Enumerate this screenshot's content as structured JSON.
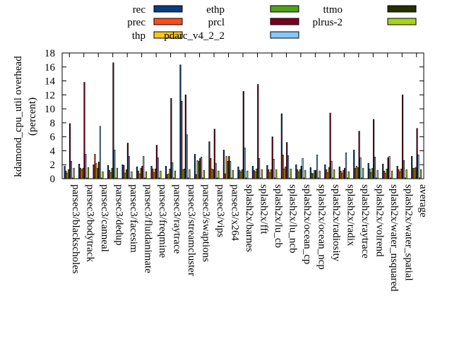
{
  "chart_data": {
    "type": "bar",
    "ylabel": "kdamond_cpu_util overhead\n(percent)",
    "ylim": [
      0,
      18
    ],
    "yticks": [
      0,
      2,
      4,
      6,
      8,
      10,
      12,
      14,
      16,
      18
    ],
    "legend_position": "top",
    "categories": [
      "parsec3/blackscholes",
      "parsec3/bodytrack",
      "parsec3/canneal",
      "parsec3/dedup",
      "parsec3/facesim",
      "parsec3/fluidanimate",
      "parsec3/freqmine",
      "parsec3/raytrace",
      "parsec3/streamcluster",
      "parsec3/swaptions",
      "parsec3/vips",
      "parsec3/x264",
      "splash2x/barnes",
      "splash2x/fft",
      "splash2x/lu_cb",
      "splash2x/lu_ncb",
      "splash2x/ocean_cp",
      "splash2x/ocean_ncp",
      "splash2x/radiosity",
      "splash2x/radix",
      "splash2x/raytrace",
      "splash2x/volrend",
      "splash2x/water_nsquared",
      "splash2x/water_spatial",
      "average"
    ],
    "series": [
      {
        "name": "rec",
        "color": "#0a3e80",
        "values": [
          1.8,
          2.1,
          2.0,
          1.9,
          2.0,
          1.7,
          1.8,
          1.8,
          16.3,
          3.5,
          5.3,
          4.1,
          1.7,
          1.8,
          1.9,
          9.3,
          2.0,
          1.6,
          2.0,
          1.7,
          4.1,
          2.2,
          2.1,
          1.8,
          3.2
        ]
      },
      {
        "name": "prec",
        "color": "#ff4a1a",
        "values": [
          1.1,
          1.5,
          3.5,
          1.2,
          1.9,
          1.1,
          1.4,
          0.6,
          11.1,
          0.6,
          2.9,
          0.7,
          1.2,
          1.2,
          1.3,
          3.4,
          1.3,
          0.8,
          1.3,
          1.1,
          1.5,
          1.4,
          1.1,
          1.3,
          1.5
        ]
      },
      {
        "name": "thp",
        "color": "#f7c81a",
        "values": [
          0.8,
          1.3,
          2.2,
          0.9,
          0.8,
          0.7,
          0.9,
          0.7,
          1.3,
          2.6,
          1.4,
          3.2,
          1.0,
          1.0,
          0.9,
          1.4,
          1.0,
          0.7,
          0.9,
          0.8,
          1.8,
          0.9,
          0.8,
          1.0,
          1.5
        ]
      },
      {
        "name": "ethp",
        "color": "#4ea11a",
        "values": [
          1.3,
          1.5,
          1.5,
          1.5,
          1.3,
          1.5,
          1.4,
          1.4,
          1.4,
          2.5,
          1.3,
          2.5,
          1.3,
          1.4,
          1.3,
          1.7,
          1.3,
          1.2,
          1.6,
          1.2,
          1.6,
          1.5,
          1.4,
          1.4,
          1.6
        ]
      },
      {
        "name": "prcl",
        "color": "#7a0020",
        "values": [
          7.9,
          13.8,
          2.4,
          16.6,
          5.1,
          1.8,
          4.8,
          11.5,
          12.0,
          2.9,
          7.1,
          3.2,
          12.5,
          13.5,
          6.0,
          5.2,
          1.8,
          1.2,
          9.4,
          1.5,
          6.8,
          8.5,
          3.0,
          12.0,
          7.2
        ]
      },
      {
        "name": "pdarc_v4_2_2",
        "color": "#88c8f8",
        "values": [
          2.5,
          3.5,
          7.5,
          4.1,
          3.2,
          3.2,
          3.0,
          2.3,
          6.3,
          3.1,
          2.2,
          2.5,
          4.4,
          2.9,
          2.8,
          3.3,
          2.9,
          3.4,
          2.5,
          3.7,
          3.0,
          3.1,
          3.2,
          2.6,
          3.4
        ]
      },
      {
        "name": "ttmo",
        "color": "#263000",
        "values": [
          0.1,
          0.1,
          0.1,
          0.1,
          0.1,
          0.1,
          0.1,
          0.1,
          0.1,
          0.1,
          0.1,
          0.1,
          0.1,
          0.1,
          0.1,
          0.1,
          0.1,
          0.1,
          0.1,
          0.1,
          0.1,
          0.1,
          0.1,
          0.1,
          0.1
        ]
      },
      {
        "name": "plrus-2",
        "color": "#a8d418",
        "values": [
          1.5,
          1.6,
          1.0,
          1.5,
          1.0,
          1.0,
          1.1,
          1.1,
          1.3,
          1.2,
          1.1,
          1.2,
          1.1,
          1.3,
          1.3,
          1.4,
          1.2,
          1.1,
          1.3,
          1.0,
          1.5,
          1.2,
          1.1,
          1.3,
          1.3
        ]
      }
    ]
  }
}
